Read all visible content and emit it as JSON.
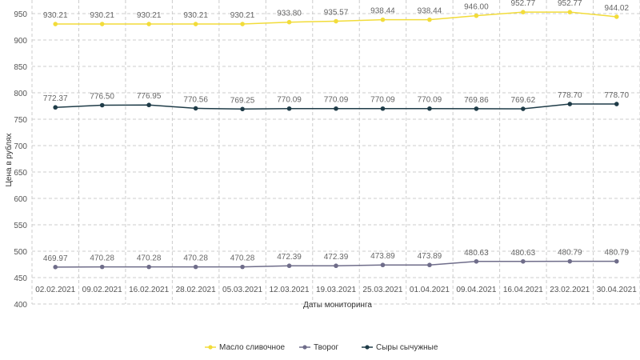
{
  "chart_data": {
    "type": "line",
    "categories": [
      "02.02.2021",
      "09.02.2021",
      "16.02.2021",
      "28.02.2021",
      "05.03.2021",
      "12.03.2021",
      "19.03.2021",
      "25.03.2021",
      "01.04.2021",
      "09.04.2021",
      "16.04.2021",
      "23.02.2021",
      "30.04.2021"
    ],
    "series": [
      {
        "name": "Масло сливочное",
        "color": "#f2dc3a",
        "values": [
          930.21,
          930.21,
          930.21,
          930.21,
          930.21,
          933.8,
          935.57,
          938.44,
          938.44,
          946.0,
          952.77,
          952.77,
          944.02
        ],
        "labels": [
          "930.21",
          "930.21",
          "930.21",
          "930.21",
          "930.21",
          "933.80",
          "935.57",
          "938.44",
          "938.44",
          "946.00",
          "952.77",
          "952.77",
          "944.02"
        ]
      },
      {
        "name": "Творог",
        "color": "#6f6d8a",
        "values": [
          469.97,
          470.28,
          470.28,
          470.28,
          470.28,
          472.39,
          472.39,
          473.89,
          473.89,
          480.63,
          480.63,
          480.79,
          480.79
        ],
        "labels": [
          "469.97",
          "470.28",
          "470.28",
          "470.28",
          "470.28",
          "472.39",
          "472.39",
          "473.89",
          "473.89",
          "480.63",
          "480.63",
          "480.79",
          "480.79"
        ]
      },
      {
        "name": "Сыры сычужные",
        "color": "#1f3c48",
        "values": [
          772.37,
          776.5,
          776.95,
          770.56,
          769.25,
          770.09,
          770.09,
          770.09,
          770.09,
          769.86,
          769.62,
          778.7,
          778.7
        ],
        "labels": [
          "772.37",
          "776.50",
          "776.95",
          "770.56",
          "769.25",
          "770.09",
          "770.09",
          "770.09",
          "770.09",
          "769.86",
          "769.62",
          "778.70",
          "778.70"
        ]
      }
    ],
    "xlabel": "Даты мониторинга",
    "ylabel": "Цена в рублях",
    "ylim": [
      400,
      950
    ],
    "yticks": [
      "400",
      "450",
      "500",
      "550",
      "600",
      "650",
      "700",
      "750",
      "800",
      "850",
      "900",
      "950"
    ],
    "grid": true,
    "legend_position": "bottom"
  }
}
